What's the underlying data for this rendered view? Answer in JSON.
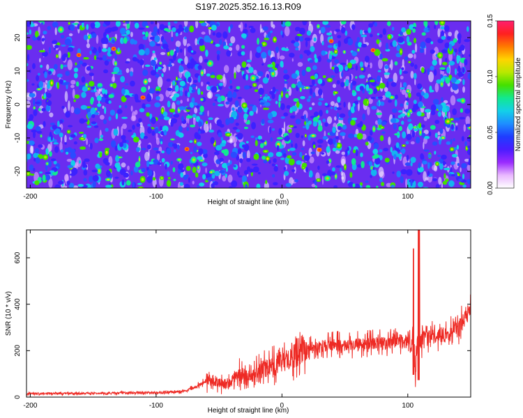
{
  "title": "S197.2025.352.16.13.R09",
  "chart_data": [
    {
      "type": "heatmap",
      "xlabel": "Height of straight line (km)",
      "ylabel": "Frequency (Hz)",
      "xlim": [
        -203,
        150
      ],
      "ylim": [
        -25,
        25
      ],
      "xticks": [
        -200,
        -100,
        0,
        100
      ],
      "yticks": [
        -20,
        -10,
        0,
        10,
        20
      ],
      "colorbar": {
        "label": "Normalized spectral amplitude",
        "range": [
          0,
          0.15
        ],
        "ticks": [
          "0.00",
          "0.05",
          "0.10",
          "0.15"
        ],
        "colors": [
          "#ffffff",
          "#e9b8ff",
          "#9a2bff",
          "#4b1cff",
          "#1f3dff",
          "#1e8dff",
          "#13d0e8",
          "#12e890",
          "#44e000",
          "#b8e800",
          "#ffd400",
          "#ff7a00",
          "#ff2020",
          "#ff1f6f"
        ]
      }
    },
    {
      "type": "line",
      "xlabel": "Height of straight line (km)",
      "ylabel": "SNR (10 * v/v)",
      "xlim": [
        -203,
        150
      ],
      "ylim": [
        0,
        720
      ],
      "xticks": [
        -200,
        -100,
        0,
        100
      ],
      "yticks": [
        0,
        200,
        400,
        600
      ],
      "series": [
        {
          "name": "SNR",
          "color": "#ee2a24",
          "x": [
            -203,
            -180,
            -160,
            -140,
            -120,
            -100,
            -90,
            -80,
            -75,
            -70,
            -65,
            -60,
            -55,
            -50,
            -45,
            -40,
            -35,
            -30,
            -25,
            -20,
            -15,
            -10,
            -5,
            0,
            5,
            10,
            15,
            20,
            25,
            30,
            40,
            50,
            60,
            70,
            80,
            90,
            95,
            100,
            104,
            106,
            108,
            110,
            112,
            115,
            120,
            130,
            140,
            145,
            150
          ],
          "values": [
            15,
            15,
            16,
            17,
            18,
            19,
            20,
            24,
            30,
            40,
            55,
            70,
            75,
            60,
            50,
            70,
            100,
            95,
            90,
            110,
            120,
            130,
            140,
            150,
            160,
            180,
            190,
            205,
            215,
            220,
            225,
            225,
            228,
            230,
            232,
            235,
            240,
            240,
            250,
            120,
            250,
            260,
            255,
            260,
            265,
            270,
            290,
            340,
            390
          ]
        }
      ]
    }
  ]
}
